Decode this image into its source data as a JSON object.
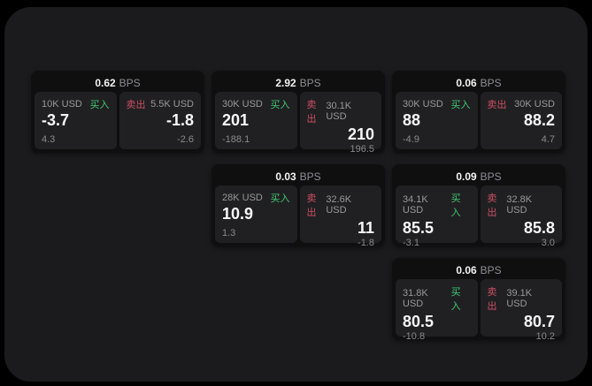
{
  "labels": {
    "buy": "买入",
    "sell": "卖出",
    "bps": "BPS"
  },
  "colors": {
    "page_background": "#000000",
    "frame_background": "#1b1b1d",
    "card_background": "#0f0f10",
    "panel_background": "#202022",
    "text_primary": "#f7f7f7",
    "text_secondary": "#8e8e93",
    "buy_green": "#40c873",
    "sell_red": "#cc4f63"
  },
  "cards": [
    {
      "row": 1,
      "col": 1,
      "bps": "0.62",
      "buy": {
        "amount": "10K USD",
        "value": "-3.7",
        "delta": "4.3"
      },
      "sell": {
        "amount": "5.5K USD",
        "value": "-1.8",
        "delta": "-2.6"
      }
    },
    {
      "row": 1,
      "col": 2,
      "bps": "2.92",
      "buy": {
        "amount": "30K USD",
        "value": "201",
        "delta": "-188.1"
      },
      "sell": {
        "amount": "30.1K USD",
        "value": "210",
        "delta": "196.5"
      }
    },
    {
      "row": 1,
      "col": 3,
      "bps": "0.06",
      "buy": {
        "amount": "30K USD",
        "value": "88",
        "delta": "-4.9"
      },
      "sell": {
        "amount": "30K USD",
        "value": "88.2",
        "delta": "4.7"
      }
    },
    {
      "row": 2,
      "col": 2,
      "bps": "0.03",
      "buy": {
        "amount": "28K USD",
        "value": "10.9",
        "delta": "1.3"
      },
      "sell": {
        "amount": "32.6K USD",
        "value": "11",
        "delta": "-1.8"
      }
    },
    {
      "row": 2,
      "col": 3,
      "bps": "0.09",
      "buy": {
        "amount": "34.1K USD",
        "value": "85.5",
        "delta": "-3.1"
      },
      "sell": {
        "amount": "32.8K USD",
        "value": "85.8",
        "delta": "3.0"
      }
    },
    {
      "row": 3,
      "col": 3,
      "bps": "0.06",
      "buy": {
        "amount": "31.8K USD",
        "value": "80.5",
        "delta": "-10.8"
      },
      "sell": {
        "amount": "39.1K USD",
        "value": "80.7",
        "delta": "10.2"
      }
    }
  ]
}
